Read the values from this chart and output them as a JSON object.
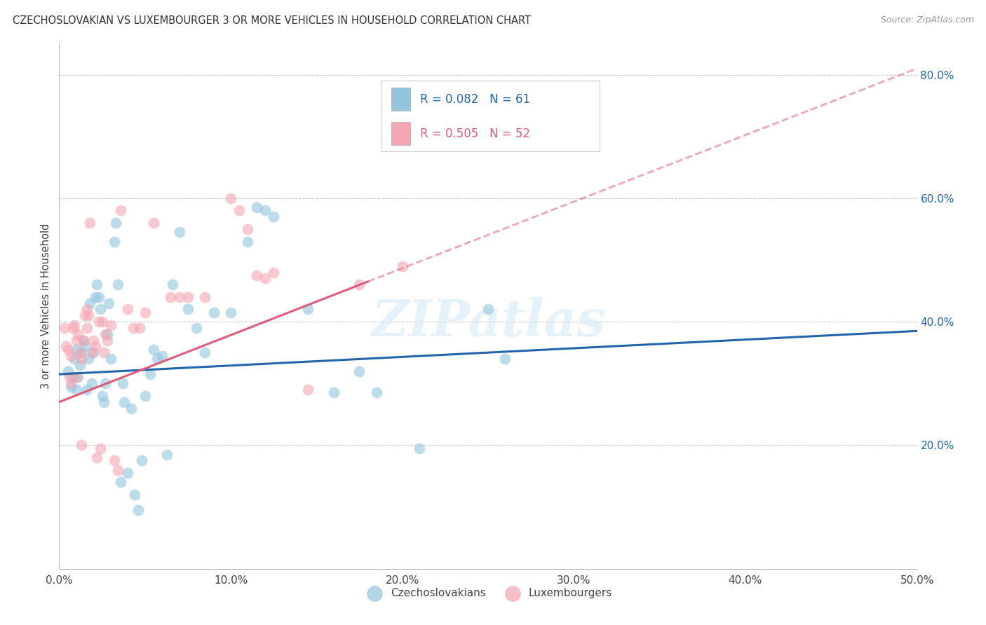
{
  "title": "CZECHOSLOVAKIAN VS LUXEMBOURGER 3 OR MORE VEHICLES IN HOUSEHOLD CORRELATION CHART",
  "source": "Source: ZipAtlas.com",
  "ylabel": "3 or more Vehicles in Household",
  "xlim": [
    0.0,
    0.5
  ],
  "ylim": [
    0.0,
    0.85
  ],
  "xticks": [
    0.0,
    0.1,
    0.2,
    0.3,
    0.4,
    0.5
  ],
  "xticklabels": [
    "0.0%",
    "10.0%",
    "20.0%",
    "30.0%",
    "40.0%",
    "50.0%"
  ],
  "yticks_right": [
    0.2,
    0.4,
    0.6,
    0.8
  ],
  "yticklabels_right": [
    "20.0%",
    "40.0%",
    "60.0%",
    "80.0%"
  ],
  "legend_blue_r": "R = 0.082",
  "legend_blue_n": "N = 61",
  "legend_pink_r": "R = 0.505",
  "legend_pink_n": "N = 52",
  "legend_label_blue": "Czechoslovakians",
  "legend_label_pink": "Luxembourgers",
  "blue_color": "#92c5de",
  "pink_color": "#f4a6b2",
  "blue_line_color": "#2166ac",
  "pink_line_color": "#e05c78",
  "blue_scatter": [
    [
      0.005,
      0.32
    ],
    [
      0.007,
      0.295
    ],
    [
      0.008,
      0.31
    ],
    [
      0.009,
      0.34
    ],
    [
      0.01,
      0.355
    ],
    [
      0.01,
      0.29
    ],
    [
      0.011,
      0.31
    ],
    [
      0.012,
      0.33
    ],
    [
      0.013,
      0.35
    ],
    [
      0.014,
      0.37
    ],
    [
      0.015,
      0.36
    ],
    [
      0.016,
      0.29
    ],
    [
      0.017,
      0.34
    ],
    [
      0.018,
      0.43
    ],
    [
      0.019,
      0.3
    ],
    [
      0.02,
      0.35
    ],
    [
      0.021,
      0.44
    ],
    [
      0.022,
      0.46
    ],
    [
      0.023,
      0.44
    ],
    [
      0.024,
      0.42
    ],
    [
      0.025,
      0.28
    ],
    [
      0.026,
      0.27
    ],
    [
      0.027,
      0.3
    ],
    [
      0.028,
      0.38
    ],
    [
      0.029,
      0.43
    ],
    [
      0.03,
      0.34
    ],
    [
      0.032,
      0.53
    ],
    [
      0.033,
      0.56
    ],
    [
      0.034,
      0.46
    ],
    [
      0.036,
      0.14
    ],
    [
      0.037,
      0.3
    ],
    [
      0.038,
      0.27
    ],
    [
      0.04,
      0.155
    ],
    [
      0.042,
      0.26
    ],
    [
      0.044,
      0.12
    ],
    [
      0.046,
      0.095
    ],
    [
      0.048,
      0.175
    ],
    [
      0.05,
      0.28
    ],
    [
      0.053,
      0.315
    ],
    [
      0.055,
      0.355
    ],
    [
      0.057,
      0.34
    ],
    [
      0.06,
      0.345
    ],
    [
      0.063,
      0.185
    ],
    [
      0.066,
      0.46
    ],
    [
      0.07,
      0.545
    ],
    [
      0.075,
      0.42
    ],
    [
      0.08,
      0.39
    ],
    [
      0.085,
      0.35
    ],
    [
      0.09,
      0.415
    ],
    [
      0.1,
      0.415
    ],
    [
      0.11,
      0.53
    ],
    [
      0.115,
      0.585
    ],
    [
      0.12,
      0.58
    ],
    [
      0.125,
      0.57
    ],
    [
      0.145,
      0.42
    ],
    [
      0.16,
      0.285
    ],
    [
      0.175,
      0.32
    ],
    [
      0.185,
      0.285
    ],
    [
      0.21,
      0.195
    ],
    [
      0.25,
      0.42
    ],
    [
      0.26,
      0.34
    ]
  ],
  "pink_scatter": [
    [
      0.003,
      0.39
    ],
    [
      0.004,
      0.36
    ],
    [
      0.005,
      0.355
    ],
    [
      0.006,
      0.31
    ],
    [
      0.007,
      0.3
    ],
    [
      0.007,
      0.345
    ],
    [
      0.008,
      0.39
    ],
    [
      0.009,
      0.395
    ],
    [
      0.01,
      0.31
    ],
    [
      0.01,
      0.37
    ],
    [
      0.011,
      0.38
    ],
    [
      0.012,
      0.35
    ],
    [
      0.013,
      0.34
    ],
    [
      0.013,
      0.2
    ],
    [
      0.014,
      0.37
    ],
    [
      0.015,
      0.41
    ],
    [
      0.016,
      0.42
    ],
    [
      0.016,
      0.39
    ],
    [
      0.017,
      0.41
    ],
    [
      0.018,
      0.56
    ],
    [
      0.019,
      0.35
    ],
    [
      0.02,
      0.37
    ],
    [
      0.021,
      0.36
    ],
    [
      0.022,
      0.18
    ],
    [
      0.023,
      0.4
    ],
    [
      0.024,
      0.195
    ],
    [
      0.025,
      0.4
    ],
    [
      0.026,
      0.35
    ],
    [
      0.027,
      0.38
    ],
    [
      0.028,
      0.37
    ],
    [
      0.03,
      0.395
    ],
    [
      0.032,
      0.175
    ],
    [
      0.034,
      0.16
    ],
    [
      0.036,
      0.58
    ],
    [
      0.04,
      0.42
    ],
    [
      0.043,
      0.39
    ],
    [
      0.047,
      0.39
    ],
    [
      0.05,
      0.415
    ],
    [
      0.055,
      0.56
    ],
    [
      0.065,
      0.44
    ],
    [
      0.07,
      0.44
    ],
    [
      0.075,
      0.44
    ],
    [
      0.085,
      0.44
    ],
    [
      0.1,
      0.6
    ],
    [
      0.105,
      0.58
    ],
    [
      0.11,
      0.55
    ],
    [
      0.115,
      0.475
    ],
    [
      0.12,
      0.47
    ],
    [
      0.125,
      0.48
    ],
    [
      0.145,
      0.29
    ],
    [
      0.175,
      0.46
    ],
    [
      0.2,
      0.49
    ]
  ],
  "blue_line": [
    [
      0.0,
      0.315
    ],
    [
      0.5,
      0.385
    ]
  ],
  "pink_line_solid": [
    [
      0.0,
      0.27
    ],
    [
      0.18,
      0.465
    ]
  ],
  "pink_line_dash": [
    [
      0.18,
      0.465
    ],
    [
      0.5,
      0.81
    ]
  ],
  "watermark_text": "ZIPatlas",
  "background_color": "#ffffff",
  "grid_color": "#cccccc"
}
